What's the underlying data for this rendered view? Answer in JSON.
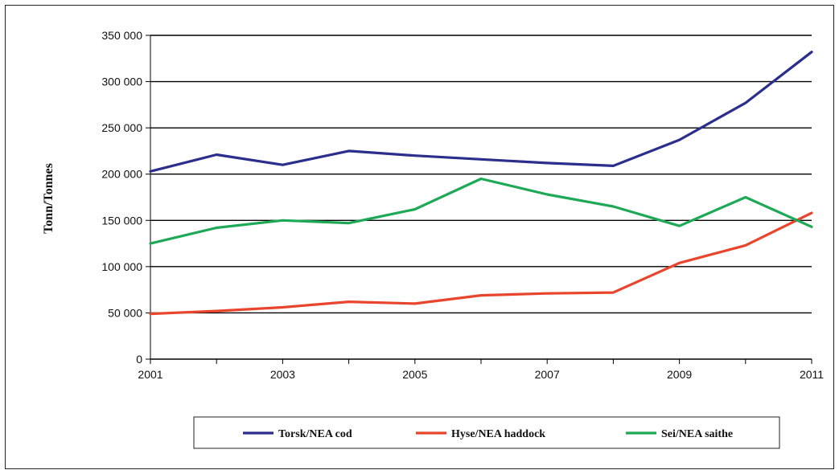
{
  "chart_data": {
    "type": "line",
    "title": "",
    "xlabel": "",
    "ylabel": "Tonn/Tonnes",
    "x": [
      2001,
      2002,
      2003,
      2004,
      2005,
      2006,
      2007,
      2008,
      2009,
      2010,
      2011
    ],
    "x_tick_labels": [
      "2001",
      "2003",
      "2005",
      "2007",
      "2009",
      "2011"
    ],
    "ylim": [
      0,
      350000
    ],
    "y_tick_labels": [
      "0",
      "50 000",
      "100 000",
      "150 000",
      "200 000",
      "250 000",
      "300 000",
      "350 000"
    ],
    "grid": "horizontal",
    "legend_position": "bottom",
    "series": [
      {
        "name": "Torsk/NEA cod",
        "color": "#2b2e8c",
        "values": [
          203000,
          221000,
          210000,
          225000,
          220000,
          216000,
          212000,
          209000,
          237000,
          277000,
          332000
        ]
      },
      {
        "name": "Hyse/NEA haddock",
        "color": "#e8452c",
        "values": [
          49000,
          52000,
          56000,
          62000,
          60000,
          69000,
          71000,
          72000,
          104000,
          123000,
          158000
        ]
      },
      {
        "name": "Sei/NEA saithe",
        "color": "#1ea956",
        "values": [
          125000,
          142000,
          150000,
          147000,
          162000,
          195000,
          178000,
          165000,
          144000,
          175000,
          143000
        ]
      }
    ]
  }
}
